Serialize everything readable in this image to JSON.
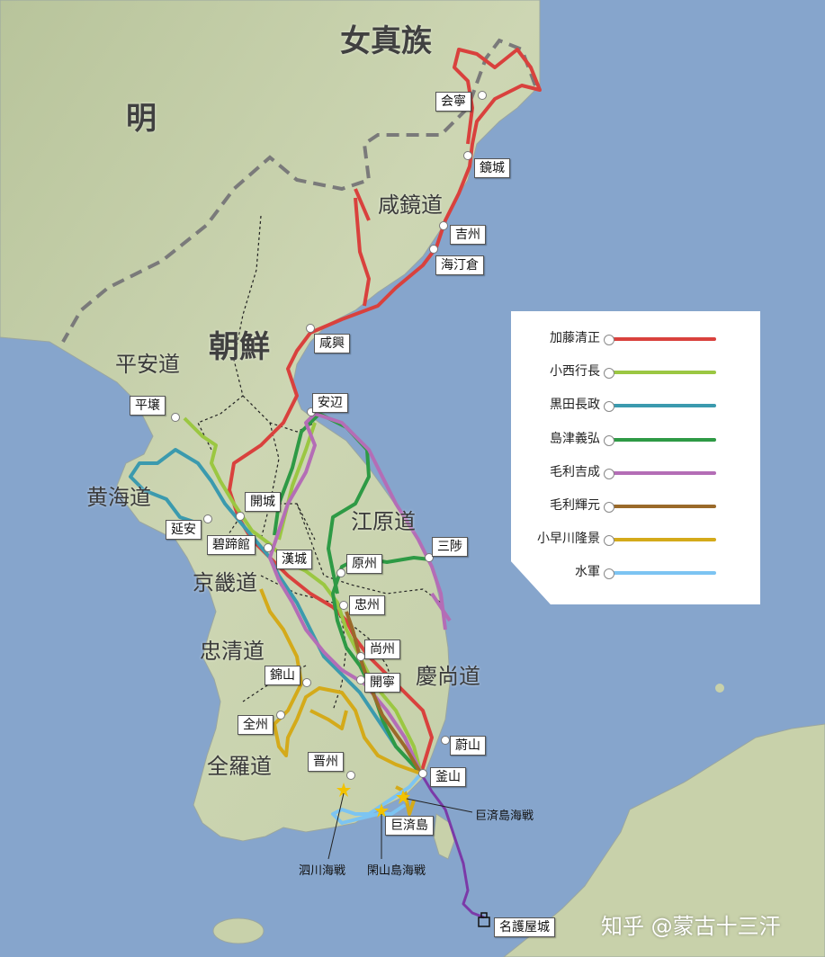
{
  "regions": {
    "jurchen": "女真族",
    "ming": "明",
    "joseon": "朝鮮",
    "hamgyong": "咸鏡道",
    "pyongan": "平安道",
    "hwanghae": "黄海道",
    "gangwon": "江原道",
    "gyeonggi": "京畿道",
    "chungcheong": "忠清道",
    "gyeongsang": "慶尚道",
    "jeolla": "全羅道"
  },
  "cities": {
    "hoeryong": "会寧",
    "kyongsong": "鏡城",
    "kilju": "吉州",
    "haejongchang": "海汀倉",
    "hamhung": "咸興",
    "anbyon": "安辺",
    "pyongyang": "平壌",
    "kaesong": "開城",
    "yonan": "延安",
    "pyokjegwan": "碧蹄館",
    "hanseong": "漢城",
    "wonju": "原州",
    "samcheok": "三陟",
    "chungju": "忠州",
    "sangju": "尚州",
    "geumsan": "錦山",
    "gaeryeong": "開寧",
    "jeonju": "全州",
    "ulsan": "蔚山",
    "jinju": "晋州",
    "busan": "釜山",
    "geojedo": "巨済島",
    "nagoya": "名護屋城"
  },
  "battles": {
    "okpo": "巨済島海戦",
    "sacheon": "泗川海戦",
    "hansando": "閑山島海戦"
  },
  "legend": [
    {
      "label": "加藤清正",
      "color": "#d9413d"
    },
    {
      "label": "小西行長",
      "color": "#9bc742"
    },
    {
      "label": "黒田長政",
      "color": "#3b9aae"
    },
    {
      "label": "島津義弘",
      "color": "#2e9a45"
    },
    {
      "label": "毛利吉成",
      "color": "#b46db6"
    },
    {
      "label": "毛利輝元",
      "color": "#9a6a2a"
    },
    {
      "label": "小早川隆景",
      "color": "#d4aa1a"
    },
    {
      "label": "水軍",
      "color": "#7cc4f2"
    }
  ],
  "watermark": "知乎 @蒙古十三汗",
  "colors": {
    "sea": "#86a5cc",
    "land": "#c9d3ae",
    "land_dark": "#a9b58c",
    "border_dash": "#7a7a7a",
    "navy_purple": "#7b3aa8",
    "battle_star": "#f2c200"
  }
}
